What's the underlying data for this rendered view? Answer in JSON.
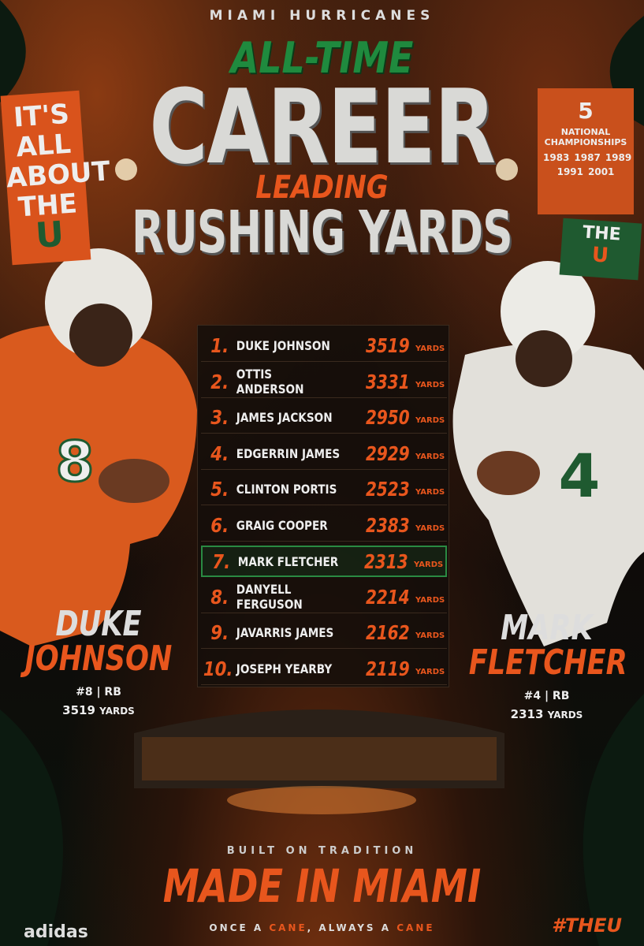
{
  "header": {
    "team": "MIAMI HURRICANES",
    "line1": "ALL-TIME",
    "line2": "CAREER",
    "line3": "LEADING",
    "line4": "RUSHING YARDS"
  },
  "left_banner": {
    "lines": [
      "IT'S",
      "ALL",
      "ABOUT",
      "THE",
      "U"
    ]
  },
  "right_banner": {
    "number": "5",
    "label": "NATIONAL CHAMPIONSHIPS",
    "years": [
      "1983",
      "1987",
      "1989",
      "1991",
      "2001"
    ]
  },
  "flag": {
    "top": "THE",
    "bottom": "U"
  },
  "table": {
    "unit": "YARDS",
    "rows": [
      {
        "rank": "1.",
        "name": "DUKE JOHNSON",
        "yards": 3519
      },
      {
        "rank": "2.",
        "name": "OTTIS ANDERSON",
        "yards": 3331
      },
      {
        "rank": "3.",
        "name": "JAMES JACKSON",
        "yards": 2950
      },
      {
        "rank": "4.",
        "name": "EDGERRIN JAMES",
        "yards": 2929
      },
      {
        "rank": "5.",
        "name": "CLINTON PORTIS",
        "yards": 2523
      },
      {
        "rank": "6.",
        "name": "GRAIG COOPER",
        "yards": 2383
      },
      {
        "rank": "7.",
        "name": "MARK FLETCHER",
        "yards": 2313,
        "highlighted": true
      },
      {
        "rank": "8.",
        "name": "DANYELL FERGUSON",
        "yards": 2214
      },
      {
        "rank": "9.",
        "name": "JAVARRIS JAMES",
        "yards": 2162
      },
      {
        "rank": "10.",
        "name": "JOSEPH YEARBY",
        "yards": 2119
      }
    ]
  },
  "left_player": {
    "first": "DUKE",
    "last": "JOHNSON",
    "position": "#8 | RB",
    "yards": 3519,
    "unit": "YARDS"
  },
  "right_player": {
    "first": "MARK",
    "last": "FLETCHER",
    "position": "#4 | RB",
    "yards": 2313,
    "unit": "YARDS"
  },
  "footer": {
    "kicker": "BUILT ON TRADITION",
    "title": "MADE IN MIAMI",
    "tagline": [
      "ONCE A ",
      "CANE",
      ", ALWAYS A ",
      "CANE"
    ],
    "brand": "adidas",
    "hashtag": "#THEU"
  }
}
